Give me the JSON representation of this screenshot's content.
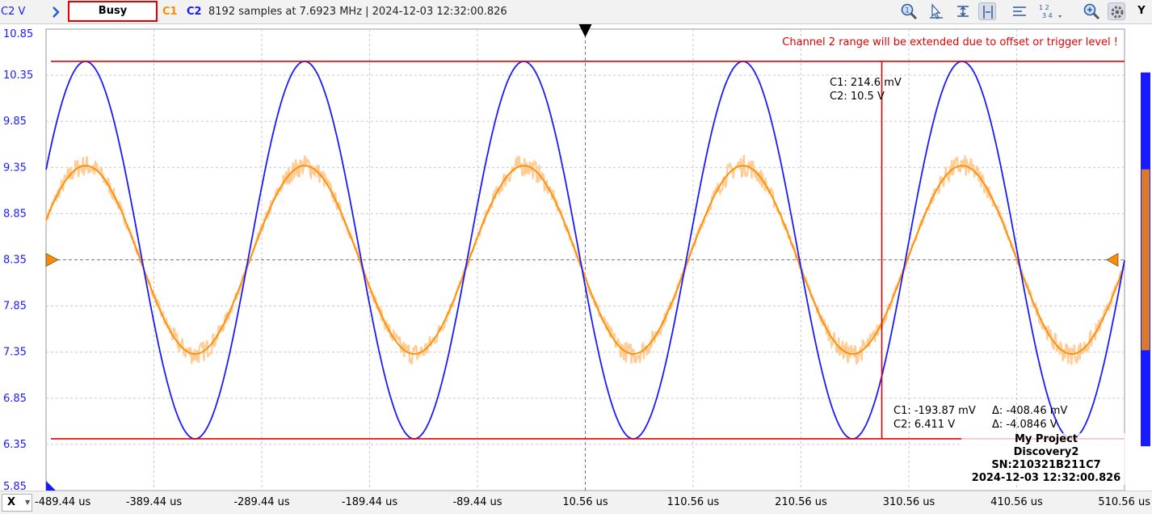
{
  "toolbar": {
    "y_unit": "C2 V",
    "status": "Busy",
    "c1_label": "C1",
    "c2_label": "C2",
    "info": "8192 samples at 7.6923 MHz  | 2024-12-03 12:32:00.826",
    "y_button": "Y",
    "x_button": "X",
    "tools": [
      "zoom-fit-icon",
      "cursor-pointer-icon",
      "horizontal-cursor-icon",
      "vertical-cursor-icon",
      "marker-list-icon",
      "channel-numbers-icon",
      "zoom-in-icon",
      "settings-icon"
    ]
  },
  "annotations": {
    "warning": "Channel 2 range will be extended due to offset or trigger level !",
    "cursor_top_c1": "C1: 214.6 mV",
    "cursor_top_c2": "C2: 10.5 V",
    "cursor_bottom_c1": "C1: -193.87 mV",
    "cursor_bottom_c2": "C2: 6.411 V",
    "delta_c1": "Δ: -408.46 mV",
    "delta_c2": "Δ: -4.0846 V"
  },
  "footer": {
    "project": "My Project",
    "device": "Discovery2",
    "serial": "SN:210321B211C7",
    "timestamp": "2024-12-03 12:32:00.826"
  },
  "chart_data": {
    "type": "line",
    "title": "",
    "xlabel": "",
    "ylabel": "C2 V",
    "x_unit": "us",
    "xlim": [
      -489.44,
      510.56
    ],
    "ylim": [
      5.85,
      10.85
    ],
    "x_ticks": [
      "-489.44 us",
      "-389.44 us",
      "-289.44 us",
      "-189.44 us",
      "-89.44 us",
      "10.56 us",
      "110.56 us",
      "210.56 us",
      "310.56 us",
      "410.56 us",
      "510.56 us"
    ],
    "y_ticks": [
      "10.85",
      "10.35",
      "9.85",
      "9.35",
      "8.85",
      "8.35",
      "7.85",
      "7.35",
      "6.85",
      "6.35",
      "5.85"
    ],
    "grid": true,
    "trigger_x": 10.56,
    "trigger_level": 8.35,
    "cursor_x_us": 285.5,
    "hcursors_y": [
      10.5,
      6.411
    ],
    "series": [
      {
        "name": "C1",
        "color": "#ff8c00",
        "center": 8.35,
        "amplitude": 1.02,
        "period_us": 203.2,
        "zero_cross_us": -300.4,
        "phase": "rising",
        "noise": true
      },
      {
        "name": "C2",
        "color": "#1a1aff",
        "center": 8.455,
        "amplitude": 2.045,
        "period_us": 203.2,
        "peak_us": -452.9
      }
    ]
  }
}
